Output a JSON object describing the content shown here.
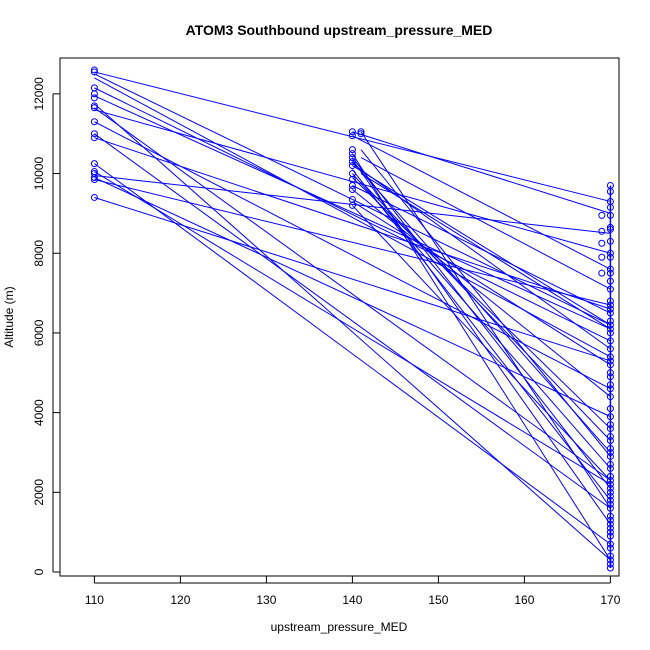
{
  "chart_data": {
    "type": "line",
    "title": "ATOM3 Southbound upstream_pressure_MED",
    "xlabel": "upstream_pressure_MED",
    "ylabel": "Altitude (m)",
    "xlim": [
      106,
      171
    ],
    "ylim": [
      -100,
      12900
    ],
    "xticks": [
      110,
      120,
      130,
      140,
      150,
      160,
      170
    ],
    "yticks": [
      0,
      2000,
      4000,
      6000,
      8000,
      10000,
      12000
    ],
    "grid": false,
    "color": "#0000ff",
    "segments": [
      [
        [
          110,
          12550
        ],
        [
          170,
          9300
        ]
      ],
      [
        [
          110,
          12500
        ],
        [
          170,
          6200
        ]
      ],
      [
        [
          110,
          12400
        ],
        [
          170,
          5400
        ]
      ],
      [
        [
          110,
          12150
        ],
        [
          170,
          5800
        ]
      ],
      [
        [
          110,
          11950
        ],
        [
          170,
          6100
        ]
      ],
      [
        [
          110,
          11750
        ],
        [
          170,
          300
        ]
      ],
      [
        [
          110,
          11650
        ],
        [
          170,
          2300
        ]
      ],
      [
        [
          110,
          11600
        ],
        [
          170,
          8000
        ]
      ],
      [
        [
          110,
          11300
        ],
        [
          170,
          4600
        ]
      ],
      [
        [
          110,
          11000
        ],
        [
          170,
          1600
        ]
      ],
      [
        [
          110,
          10900
        ],
        [
          170,
          6600
        ]
      ],
      [
        [
          110,
          10250
        ],
        [
          170,
          700
        ]
      ],
      [
        [
          110,
          10050
        ],
        [
          170,
          2200
        ]
      ],
      [
        [
          110,
          9950
        ],
        [
          170,
          8500
        ]
      ],
      [
        [
          110,
          9900
        ],
        [
          170,
          3900
        ]
      ],
      [
        [
          110,
          9850
        ],
        [
          170,
          6700
        ]
      ],
      [
        [
          110,
          9400
        ],
        [
          170,
          5300
        ]
      ],
      [
        [
          140,
          11050
        ],
        [
          170,
          9000
        ]
      ],
      [
        [
          140,
          10950
        ],
        [
          170,
          7600
        ]
      ],
      [
        [
          140,
          10500
        ],
        [
          170,
          300
        ]
      ],
      [
        [
          140,
          10400
        ],
        [
          170,
          2100
        ]
      ],
      [
        [
          140,
          10350
        ],
        [
          170,
          1200
        ]
      ],
      [
        [
          140,
          10300
        ],
        [
          170,
          3000
        ]
      ],
      [
        [
          140,
          10250
        ],
        [
          170,
          5600
        ]
      ],
      [
        [
          140,
          10200
        ],
        [
          170,
          6200
        ]
      ],
      [
        [
          140,
          10100
        ],
        [
          170,
          1800
        ]
      ],
      [
        [
          140,
          10000
        ],
        [
          170,
          2600
        ]
      ],
      [
        [
          140,
          9900
        ],
        [
          170,
          3600
        ]
      ],
      [
        [
          140,
          9700
        ],
        [
          170,
          6500
        ]
      ],
      [
        [
          140,
          9600
        ],
        [
          170,
          4400
        ]
      ],
      [
        [
          140,
          9300
        ],
        [
          170,
          5200
        ]
      ],
      [
        [
          140,
          9200
        ],
        [
          170,
          2300
        ]
      ],
      [
        [
          141,
          11050
        ],
        [
          170,
          1600
        ]
      ],
      [
        [
          141,
          10600
        ],
        [
          170,
          2900
        ]
      ],
      [
        [
          141,
          10400
        ],
        [
          170,
          7100
        ]
      ],
      [
        [
          141,
          10000
        ],
        [
          170,
          6100
        ]
      ],
      [
        [
          141,
          9800
        ],
        [
          170,
          3300
        ]
      ]
    ],
    "points_x110": [
      12600,
      12550,
      12150,
      12000,
      11900,
      11700,
      11650,
      11300,
      11000,
      10900,
      10250,
      10050,
      10000,
      9900,
      9850,
      9400
    ],
    "points_x140": [
      11050,
      10950,
      10600,
      10500,
      10400,
      10300,
      10200,
      10000,
      9850,
      9700,
      9600,
      9350,
      9200
    ],
    "points_x141": [
      11050,
      11000
    ],
    "points_x169": [
      8950,
      8550,
      8250,
      7900,
      7500
    ],
    "points_x170": [
      9700,
      9550,
      9300,
      9150,
      8950,
      8650,
      8600,
      8300,
      8000,
      7900,
      7600,
      7500,
      7300,
      7100,
      6800,
      6700,
      6600,
      6500,
      6300,
      6200,
      6100,
      6000,
      5800,
      5600,
      5400,
      5300,
      5200,
      5000,
      4900,
      4700,
      4600,
      4400,
      4100,
      3900,
      3700,
      3600,
      3400,
      3300,
      3100,
      3000,
      2900,
      2700,
      2600,
      2400,
      2300,
      2200,
      2100,
      2000,
      1900,
      1800,
      1700,
      1600,
      1400,
      1300,
      1200,
      1100,
      1000,
      900,
      700,
      600,
      400,
      300,
      200,
      100
    ]
  }
}
